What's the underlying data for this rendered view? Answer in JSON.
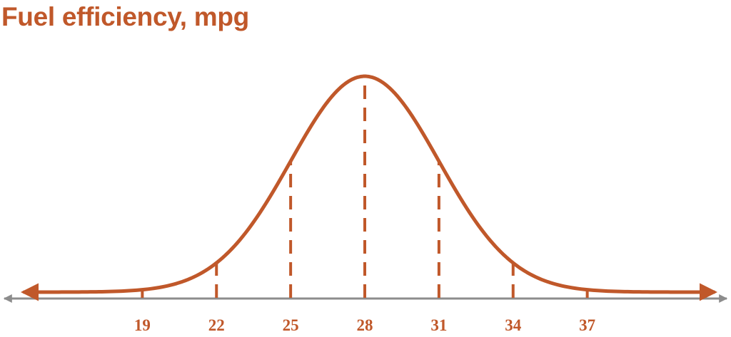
{
  "chart_data": {
    "type": "line",
    "title": "Fuel efficiency, mpg",
    "xlabel": "",
    "ylabel": "",
    "distribution": "normal",
    "mean": 28,
    "std_dev": 3,
    "marked_values": [
      19,
      22,
      25,
      28,
      31,
      34,
      37
    ],
    "tick_labels": [
      "19",
      "22",
      "25",
      "28",
      "31",
      "34",
      "37"
    ],
    "grid": false,
    "y_axis_shown": false,
    "curve_arrows": "both ends",
    "marker_lines": "dashed vertical",
    "colors": {
      "curve": "#c0582a",
      "markers": "#c0582a",
      "axis": "#8c8c8c",
      "title": "#c0582a",
      "labels": "#c0582a"
    }
  }
}
